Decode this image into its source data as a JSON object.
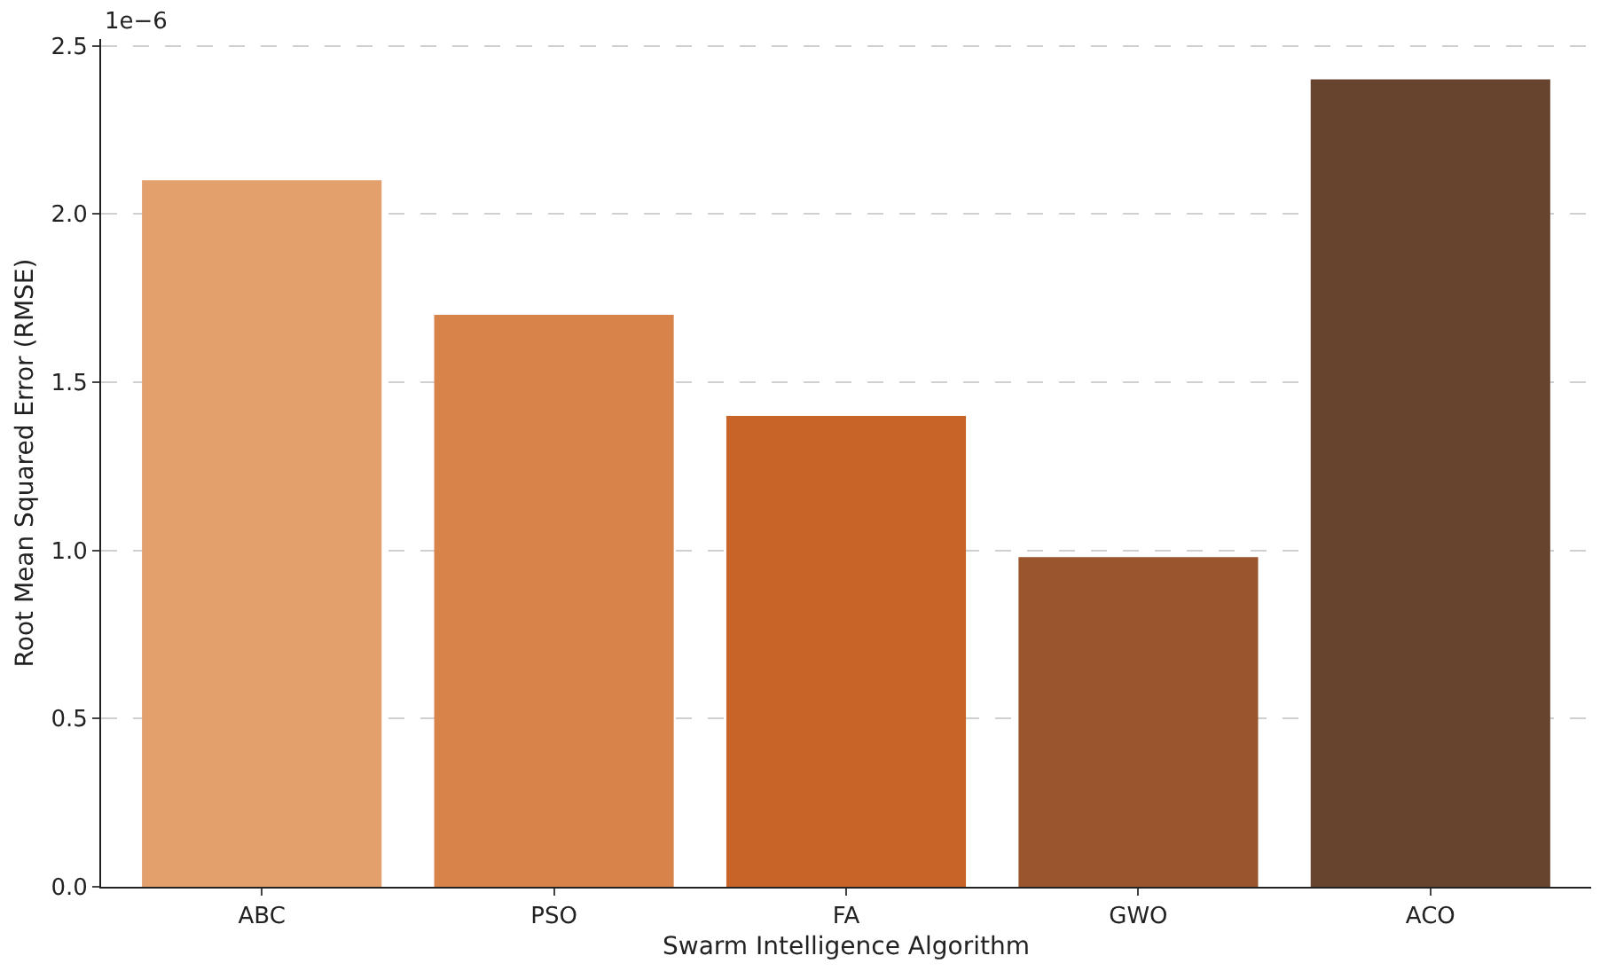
{
  "chart_data": {
    "type": "bar",
    "xlabel": "Swarm Intelligence Algorithm",
    "ylabel": "Root Mean Squared Error (RMSE)",
    "categories": [
      "ABC",
      "PSO",
      "FA",
      "GWO",
      "ACO"
    ],
    "values": [
      2.1,
      1.7,
      1.4,
      0.98,
      2.4
    ],
    "colors": [
      "#e39f6c",
      "#d8834a",
      "#c96428",
      "#9a552d",
      "#66442e"
    ],
    "ylim": [
      0,
      2.52
    ],
    "yticks": [
      {
        "value": 0,
        "label": "0.0"
      },
      0.5,
      {
        "value": 1,
        "label": "1.0"
      },
      1.5,
      {
        "value": 2,
        "label": "2.0"
      },
      2.5
    ],
    "annotations": [
      "1e−6"
    ],
    "grid": "y"
  }
}
